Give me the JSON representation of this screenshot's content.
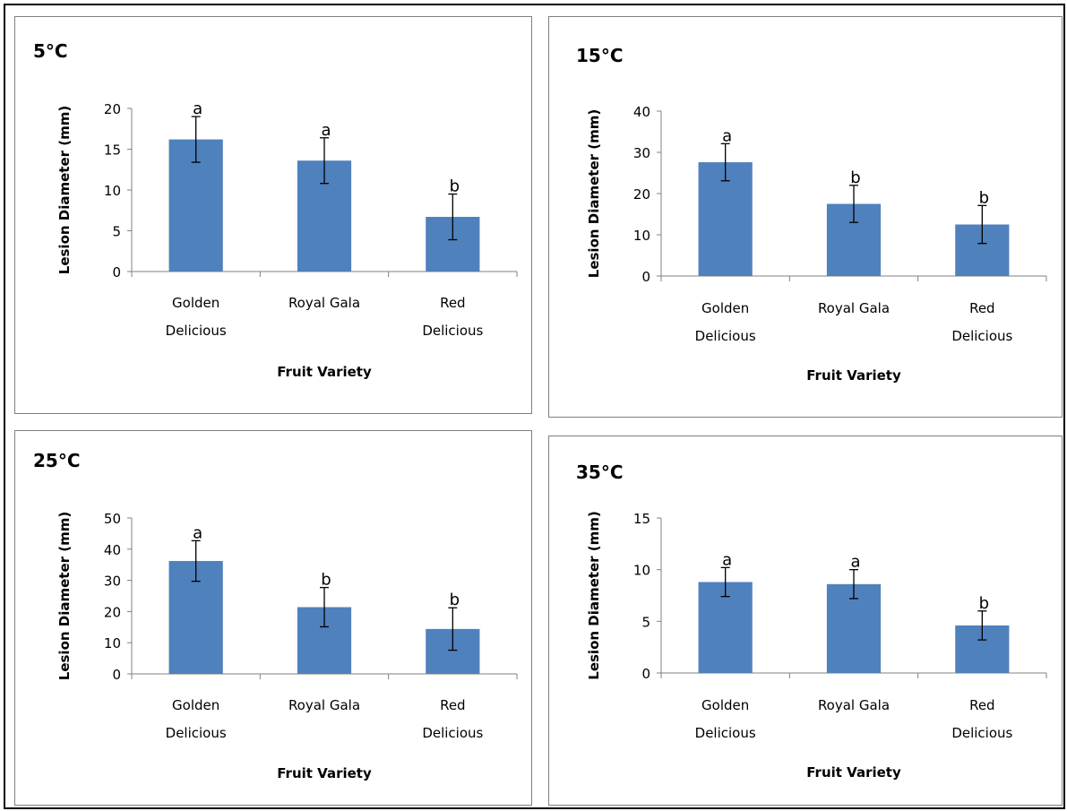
{
  "chart_data": [
    {
      "type": "bar",
      "title": "5°C",
      "ylabel": "Lesion Diameter (mm)",
      "xlabel": "Fruit Variety",
      "ylim": [
        0,
        20
      ],
      "yticks": [
        0,
        5,
        10,
        15,
        20
      ],
      "categories": [
        [
          "Golden",
          "Delicious"
        ],
        [
          "Royal Gala"
        ],
        [
          "Red",
          "Delicious"
        ]
      ],
      "values": [
        16.2,
        13.6,
        6.7
      ],
      "errors": [
        2.8,
        2.8,
        2.8
      ],
      "significance": [
        "a",
        "a",
        "b"
      ]
    },
    {
      "type": "bar",
      "title": "15°C",
      "ylabel": "Lesion Diameter (mm)",
      "xlabel": "Fruit Variety",
      "ylim": [
        0,
        40
      ],
      "yticks": [
        0,
        10,
        20,
        30,
        40
      ],
      "categories": [
        [
          "Golden",
          "Delicious"
        ],
        [
          "Royal Gala"
        ],
        [
          "Red",
          "Delicious"
        ]
      ],
      "values": [
        27.6,
        17.5,
        12.5
      ],
      "errors": [
        4.5,
        4.5,
        4.6
      ],
      "significance": [
        "a",
        "b",
        "b"
      ]
    },
    {
      "type": "bar",
      "title": "25°C",
      "ylabel": "Lesion Diameter (mm)",
      "xlabel": "Fruit Variety",
      "ylim": [
        0,
        50
      ],
      "yticks": [
        0,
        10,
        20,
        30,
        40,
        50
      ],
      "categories": [
        [
          "Golden",
          "Delicious"
        ],
        [
          "Royal Gala"
        ],
        [
          "Red",
          "Delicious"
        ]
      ],
      "values": [
        36.2,
        21.4,
        14.4
      ],
      "errors": [
        6.5,
        6.3,
        6.8
      ],
      "significance": [
        "a",
        "b",
        "b"
      ]
    },
    {
      "type": "bar",
      "title": "35°C",
      "ylabel": "Lesion Diameter (mm)",
      "xlabel": "Fruit Variety",
      "ylim": [
        0,
        15
      ],
      "yticks": [
        0,
        5,
        10,
        15
      ],
      "categories": [
        [
          "Golden",
          "Delicious"
        ],
        [
          "Royal Gala"
        ],
        [
          "Red",
          "Delicious"
        ]
      ],
      "values": [
        8.8,
        8.6,
        4.6
      ],
      "errors": [
        1.4,
        1.4,
        1.4
      ],
      "significance": [
        "a",
        "a",
        "b"
      ]
    }
  ],
  "colors": {
    "bar": "#4f81bd",
    "axis": "#808080",
    "error_bar": "#000000"
  }
}
